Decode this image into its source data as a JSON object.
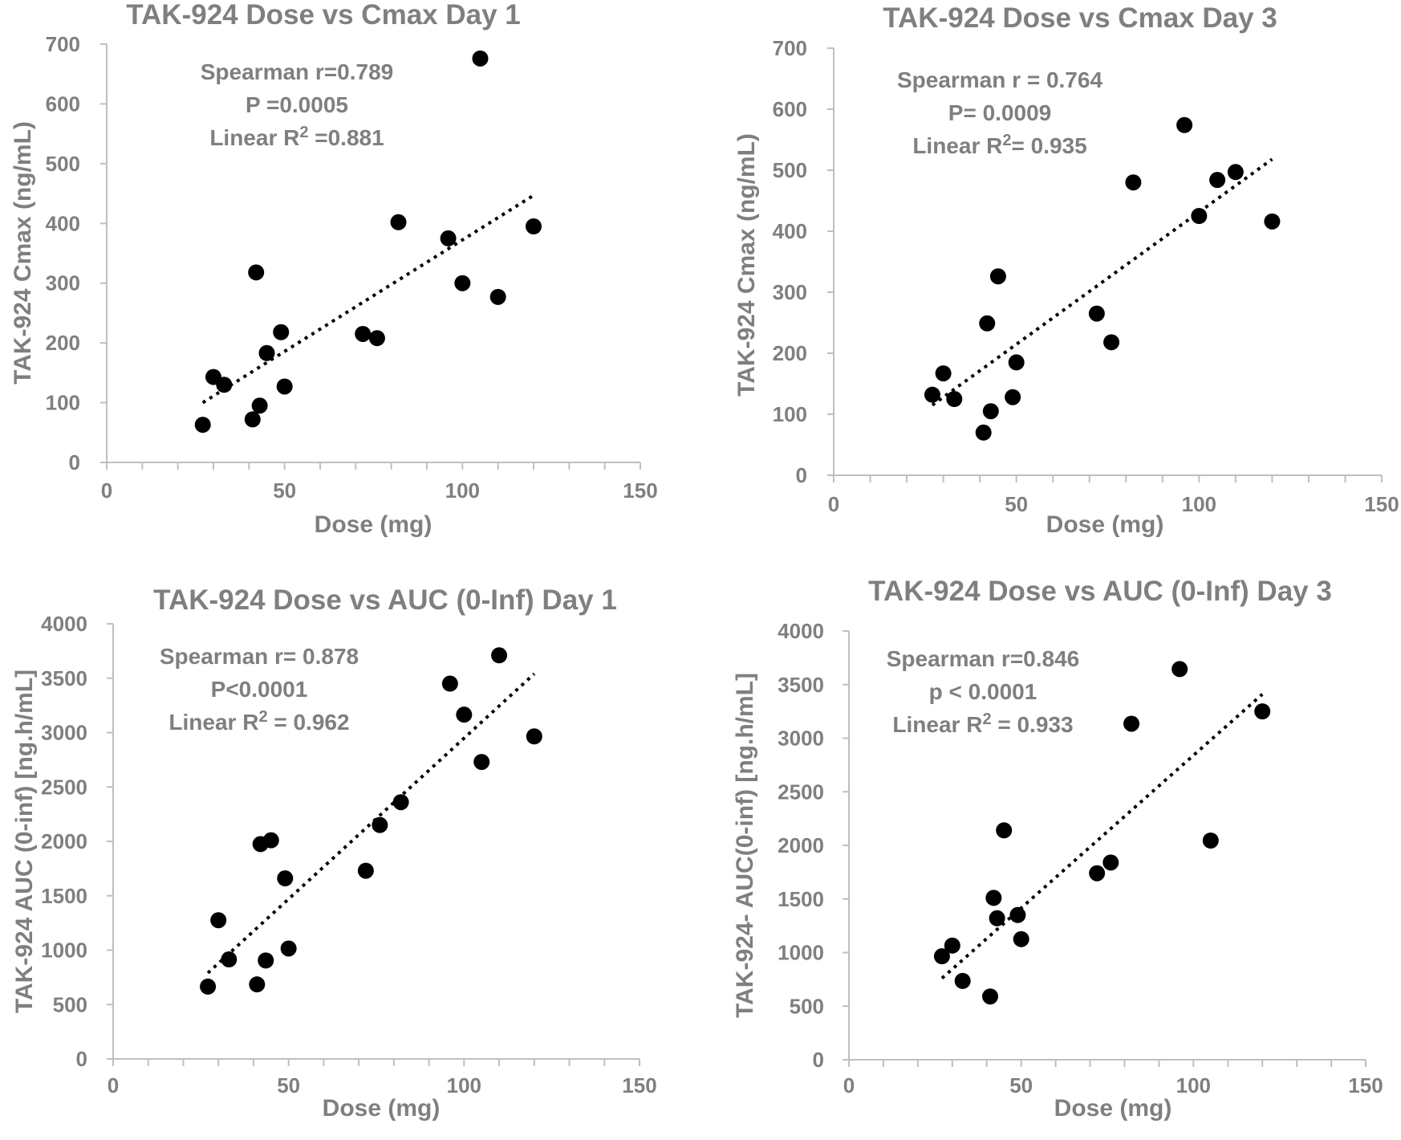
{
  "chart_data": [
    {
      "type": "scatter",
      "title": "TAK-924 Dose vs Cmax Day 1",
      "xlabel": "Dose (mg)",
      "ylabel": "TAK-924 Cmax (ng/mL)",
      "xlim": [
        0,
        150
      ],
      "ylim": [
        0,
        700
      ],
      "x_ticks": [
        "0",
        "50",
        "100",
        "150"
      ],
      "y_ticks": [
        "0",
        "100",
        "200",
        "300",
        "400",
        "500",
        "600",
        "700"
      ],
      "annotations": [
        "Spearman r=0.789",
        "P =0.0005",
        "Linear R² =0.881"
      ],
      "points": [
        {
          "x": 27,
          "y": 63
        },
        {
          "x": 30,
          "y": 143
        },
        {
          "x": 33,
          "y": 130
        },
        {
          "x": 41,
          "y": 72
        },
        {
          "x": 42,
          "y": 318
        },
        {
          "x": 43,
          "y": 95
        },
        {
          "x": 45,
          "y": 183
        },
        {
          "x": 49,
          "y": 218
        },
        {
          "x": 50,
          "y": 127
        },
        {
          "x": 72,
          "y": 215
        },
        {
          "x": 76,
          "y": 208
        },
        {
          "x": 82,
          "y": 402
        },
        {
          "x": 96,
          "y": 375
        },
        {
          "x": 100,
          "y": 300
        },
        {
          "x": 105,
          "y": 676
        },
        {
          "x": 110,
          "y": 277
        },
        {
          "x": 120,
          "y": 395
        }
      ],
      "trendline": {
        "x": [
          27,
          120
        ],
        "y": [
          100,
          447
        ]
      }
    },
    {
      "type": "scatter",
      "title": "TAK-924 Dose vs Cmax Day 3",
      "xlabel": "Dose (mg)",
      "ylabel": "TAK-924 Cmax (ng/mL)",
      "xlim": [
        0,
        150
      ],
      "ylim": [
        0,
        700
      ],
      "x_ticks": [
        "0",
        "50",
        "100",
        "150"
      ],
      "y_ticks": [
        "0",
        "100",
        "200",
        "300",
        "400",
        "500",
        "600",
        "700"
      ],
      "annotations": [
        "Spearman r = 0.764",
        "P= 0.0009",
        "Linear R²= 0.935"
      ],
      "points": [
        {
          "x": 27,
          "y": 132
        },
        {
          "x": 30,
          "y": 167
        },
        {
          "x": 33,
          "y": 125
        },
        {
          "x": 41,
          "y": 70
        },
        {
          "x": 42,
          "y": 249
        },
        {
          "x": 43,
          "y": 105
        },
        {
          "x": 45,
          "y": 326
        },
        {
          "x": 49,
          "y": 128
        },
        {
          "x": 50,
          "y": 185
        },
        {
          "x": 72,
          "y": 265
        },
        {
          "x": 76,
          "y": 218
        },
        {
          "x": 82,
          "y": 480
        },
        {
          "x": 96,
          "y": 574
        },
        {
          "x": 100,
          "y": 425
        },
        {
          "x": 105,
          "y": 484
        },
        {
          "x": 110,
          "y": 497
        },
        {
          "x": 120,
          "y": 416
        }
      ],
      "trendline": {
        "x": [
          27,
          120
        ],
        "y": [
          115,
          518
        ]
      }
    },
    {
      "type": "scatter",
      "title": "TAK-924 Dose vs AUC (0-Inf) Day 1",
      "xlabel": "Dose (mg)",
      "ylabel": "TAK-924 AUC (0-inf) [ng.h/mL]",
      "xlim": [
        0,
        150
      ],
      "ylim": [
        0,
        4000
      ],
      "x_ticks": [
        "0",
        "50",
        "100",
        "150"
      ],
      "y_ticks": [
        "0",
        "500",
        "1000",
        "1500",
        "2000",
        "2500",
        "3000",
        "3500",
        "4000"
      ],
      "annotations": [
        "Spearman r= 0.878",
        "P<0.0001",
        "Linear R² = 0.962"
      ],
      "points": [
        {
          "x": 27,
          "y": 665
        },
        {
          "x": 30,
          "y": 1275
        },
        {
          "x": 33,
          "y": 915
        },
        {
          "x": 41,
          "y": 685
        },
        {
          "x": 42,
          "y": 1975
        },
        {
          "x": 43.5,
          "y": 905
        },
        {
          "x": 45,
          "y": 2010
        },
        {
          "x": 49,
          "y": 1660
        },
        {
          "x": 50,
          "y": 1015
        },
        {
          "x": 72,
          "y": 1730
        },
        {
          "x": 76,
          "y": 2150
        },
        {
          "x": 82,
          "y": 2360
        },
        {
          "x": 96,
          "y": 3450
        },
        {
          "x": 100,
          "y": 3165
        },
        {
          "x": 105,
          "y": 2730
        },
        {
          "x": 110,
          "y": 3710
        },
        {
          "x": 120,
          "y": 2965
        }
      ],
      "trendline": {
        "x": [
          27,
          120
        ],
        "y": [
          790,
          3540
        ]
      }
    },
    {
      "type": "scatter",
      "title": "TAK-924 Dose vs AUC (0-Inf) Day 3",
      "xlabel": "Dose (mg)",
      "ylabel": "TAK-924- AUC(0-inf) [ng.h/mL]",
      "xlim": [
        0,
        150
      ],
      "ylim": [
        0,
        4000
      ],
      "x_ticks": [
        "0",
        "50",
        "100",
        "150"
      ],
      "y_ticks": [
        "0",
        "500",
        "1000",
        "1500",
        "2000",
        "2500",
        "3000",
        "3500",
        "4000"
      ],
      "annotations": [
        "Spearman r=0.846",
        "p < 0.0001",
        "Linear R² = 0.933"
      ],
      "points": [
        {
          "x": 27,
          "y": 965
        },
        {
          "x": 30,
          "y": 1065
        },
        {
          "x": 33,
          "y": 735
        },
        {
          "x": 41,
          "y": 590
        },
        {
          "x": 42,
          "y": 1510
        },
        {
          "x": 43,
          "y": 1320
        },
        {
          "x": 45,
          "y": 2140
        },
        {
          "x": 49,
          "y": 1350
        },
        {
          "x": 50,
          "y": 1125
        },
        {
          "x": 72,
          "y": 1740
        },
        {
          "x": 76,
          "y": 1840
        },
        {
          "x": 82,
          "y": 3135
        },
        {
          "x": 96,
          "y": 3645
        },
        {
          "x": 105,
          "y": 2045
        },
        {
          "x": 120,
          "y": 3250
        }
      ],
      "trendline": {
        "x": [
          27,
          120
        ],
        "y": [
          760,
          3410
        ]
      }
    }
  ]
}
